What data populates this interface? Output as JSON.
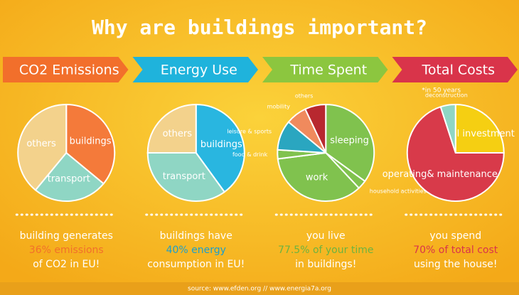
{
  "title": "Why are buildings important?",
  "chart_data": [
    {
      "type": "pie",
      "title": "CO2 Emissions",
      "color": "#f26f2b",
      "categories": [
        "buildings",
        "transport",
        "others"
      ],
      "values": [
        36,
        25,
        39
      ],
      "colors": [
        "#f47a3a",
        "#8fd6c4",
        "#f3d28c"
      ],
      "caption": [
        "building generates",
        "36% emissions",
        "of CO2 in EU!"
      ],
      "caption_color": "#f26f2b"
    },
    {
      "type": "pie",
      "title": "Energy Use",
      "color": "#1fb3dc",
      "categories": [
        "buildings",
        "transport",
        "others"
      ],
      "values": [
        40,
        35,
        25
      ],
      "colors": [
        "#29b6e0",
        "#8fd6c4",
        "#f3d28c"
      ],
      "caption": [
        "buildings have",
        "40% energy",
        "consumption in EU!"
      ],
      "caption_color": "#1a9fce"
    },
    {
      "type": "pie",
      "title": "Time Spent",
      "color": "#8cc63f",
      "categories": [
        "sleeping",
        "household activities",
        "work",
        "food & drink",
        "leisure & sports",
        "mobility",
        "others"
      ],
      "values": [
        35,
        3,
        35,
        3,
        10,
        7,
        7
      ],
      "colors": [
        "#80c24e",
        "#80c24e",
        "#80c24e",
        "#80c24e",
        "#2aa6c0",
        "#f08a5d",
        "#b8282f"
      ],
      "caption": [
        "you live",
        "77.5% of your time",
        "in buildings!"
      ],
      "caption_color": "#6db33f"
    },
    {
      "type": "pie",
      "title": "Total Costs",
      "color": "#d9344a",
      "note": "*in 50 years",
      "categories": [
        "initial investment",
        "operating& maintenance",
        "deconstruction"
      ],
      "values": [
        25,
        70,
        5
      ],
      "colors": [
        "#f5cf12",
        "#d83a4a",
        "#8fd6c4"
      ],
      "caption": [
        "you spend",
        "70% of total cost",
        "using the house!"
      ],
      "caption_color": "#d9344a"
    }
  ],
  "source": "source: www.efden.org // www.energia7a.org"
}
